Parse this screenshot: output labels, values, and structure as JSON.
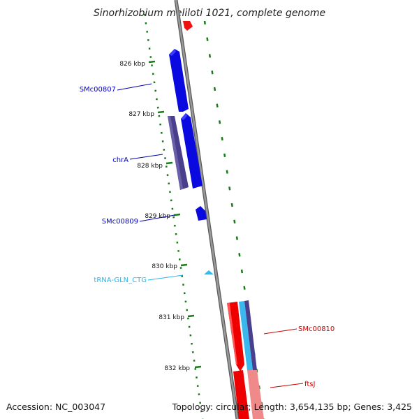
{
  "title": "Sinorhizobium meliloti 1021, complete genome",
  "footer": {
    "accession": "Accession: NC_003047",
    "topology": "Topology: circular; Length: 3,654,135 bp; Genes: 3,425"
  },
  "ticks": [
    "826 kbp",
    "827 kbp",
    "828 kbp",
    "829 kbp",
    "830 kbp",
    "831 kbp",
    "832 kbp"
  ],
  "genes": [
    {
      "label": "SMc00807",
      "color": "#0000cc"
    },
    {
      "label": "chrA",
      "color": "#0000cc"
    },
    {
      "label": "SMc00809",
      "color": "#0000cc"
    },
    {
      "label": "tRNA-GLN_CTG",
      "color": "#29b6e8"
    },
    {
      "label": "SMc00810",
      "color": "#cc0000"
    },
    {
      "label": "ftsJ",
      "color": "#cc0000"
    }
  ],
  "colors": {
    "backbone": "#808080",
    "dots": "#1a7a1a",
    "forward_gene": "#0000ee",
    "reverse_gene": "#ee0000",
    "cds_dark": "#4a3f8c",
    "trna": "#3ab8ee",
    "pale_red": "#f08a8a"
  }
}
